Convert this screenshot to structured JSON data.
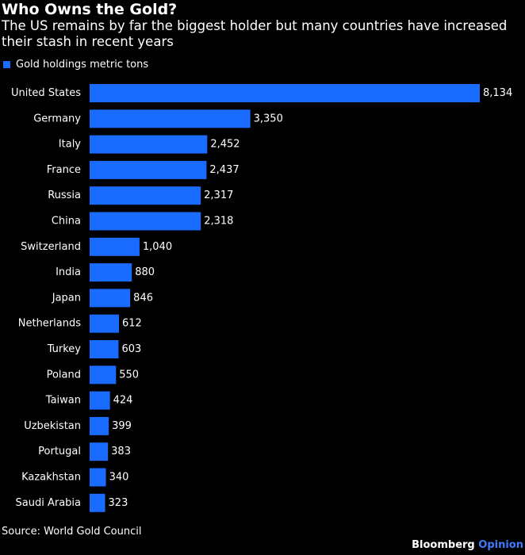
{
  "title": "Who Owns the Gold?",
  "subtitle": "The US remains by far the biggest holder but many countries have increased their stash in recent years",
  "source": "Source: World Gold Council",
  "brand": {
    "name": "Bloomberg",
    "suffix": "Opinion"
  },
  "colors": {
    "bar": "#1a6bff",
    "background": "#000000",
    "text": "#ffffff",
    "brand_suffix": "#3d7cff"
  },
  "chart_data": {
    "type": "bar",
    "orientation": "horizontal",
    "legend": "top-left",
    "grid": false,
    "xlim": [
      0,
      8134
    ],
    "categories": [
      "United States",
      "Germany",
      "Italy",
      "France",
      "Russia",
      "China",
      "Switzerland",
      "India",
      "Japan",
      "Netherlands",
      "Turkey",
      "Poland",
      "Taiwan",
      "Uzbekistan",
      "Portugal",
      "Kazakhstan",
      "Saudi Arabia"
    ],
    "series": [
      {
        "name": "Gold holdings metric tons",
        "values": [
          8134,
          3350,
          2452,
          2437,
          2317,
          2318,
          1040,
          880,
          846,
          612,
          603,
          550,
          424,
          399,
          383,
          340,
          323
        ],
        "labels": [
          "8,134",
          "3,350",
          "2,452",
          "2,437",
          "2,317",
          "2,318",
          "1,040",
          "880",
          "846",
          "612",
          "603",
          "550",
          "424",
          "399",
          "383",
          "340",
          "323"
        ]
      }
    ]
  }
}
